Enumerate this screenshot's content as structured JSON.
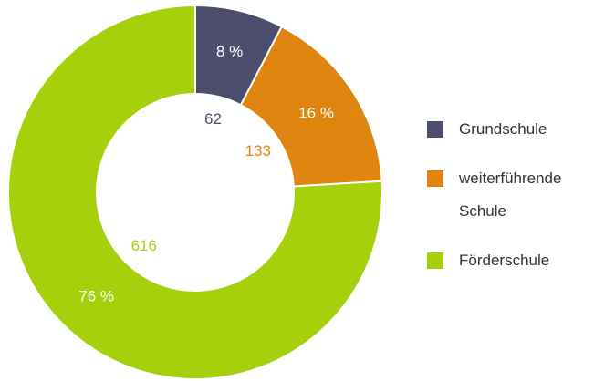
{
  "chart_data": {
    "type": "donut",
    "categories": [
      "Grundschule",
      "weiterführende Schule",
      "Förderschule"
    ],
    "values": [
      62,
      133,
      616
    ],
    "percentages": [
      8,
      16,
      76
    ],
    "percentage_labels": [
      "8 %",
      "16 %",
      "76 %"
    ],
    "colors": [
      "#4d4d6e",
      "#e0850f",
      "#a6cf0c"
    ],
    "legend": "right"
  }
}
